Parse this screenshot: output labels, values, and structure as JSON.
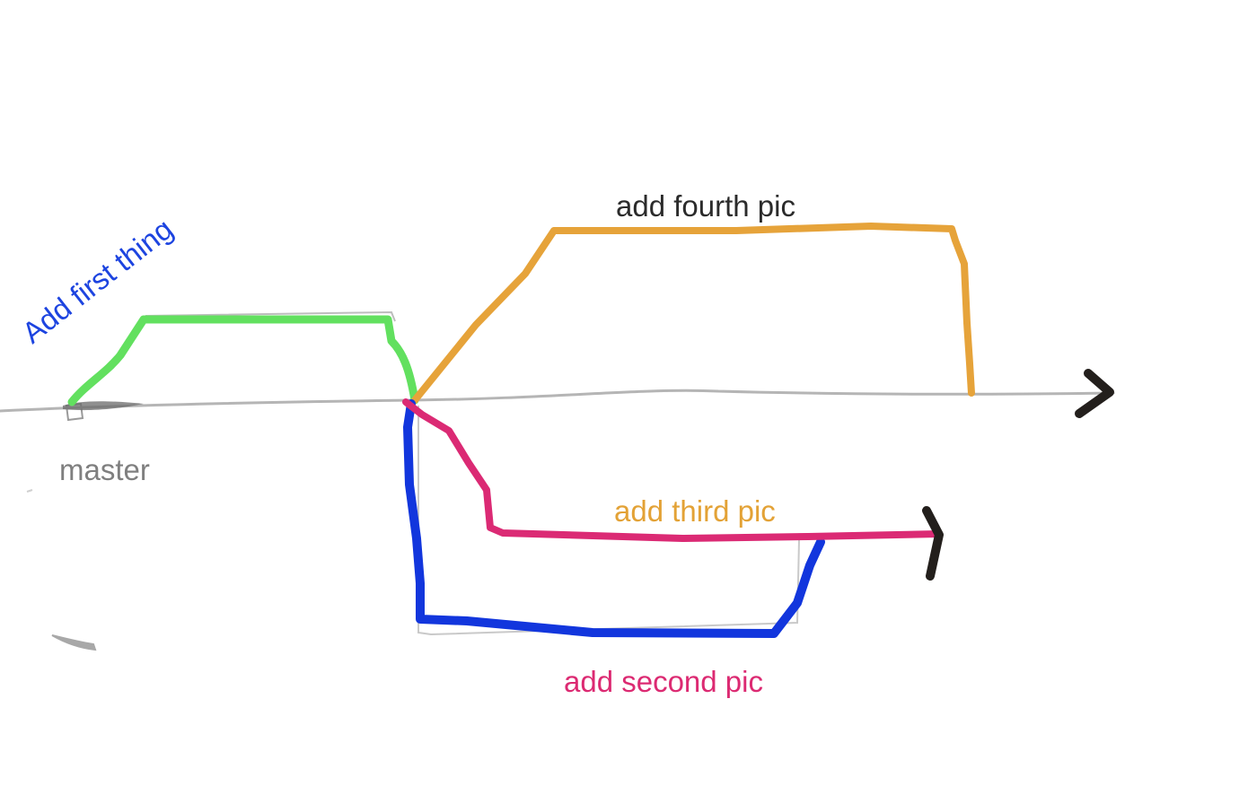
{
  "labels": {
    "master": "master",
    "first": "Add first thing",
    "second": "add second pic",
    "third": "add third pic",
    "fourth": "add fourth pic"
  },
  "colors": {
    "background": "#ffffff",
    "master_line": "#b5b5b5",
    "master_label": "#7f7f7f",
    "first_branch": "#62e05f",
    "first_label": "#1d44e0",
    "second_branch": "#1236dd",
    "second_label": "#dc2a72",
    "third_branch": "#db2a74",
    "third_label": "#e3a236",
    "fourth_branch": "#e6a33a",
    "fourth_label": "#2b2b2b",
    "arrowheads": "#231f1c"
  }
}
